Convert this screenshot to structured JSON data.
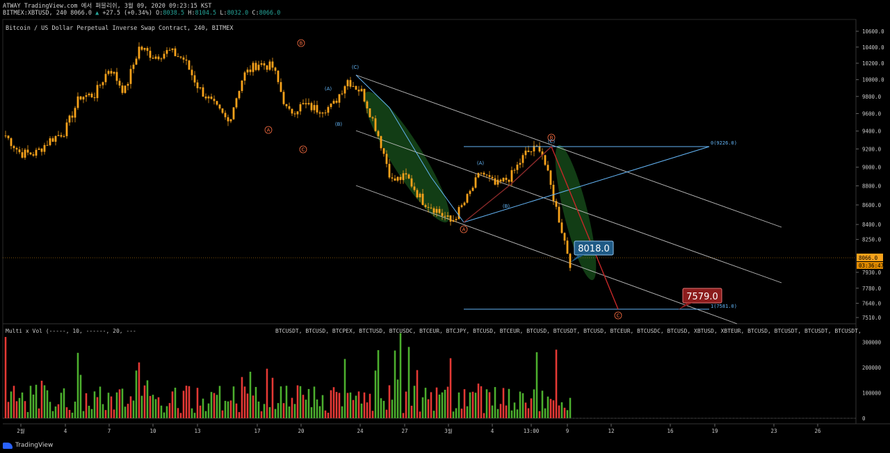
{
  "header": {
    "line1": "ATWAY TradingView.com 에서 퍼블리쉬, 3월 09, 2020 09:23:15 KST",
    "symbol": "BITMEX:XBTUSD, 240",
    "last": "8066.0",
    "change_arrow": "▲",
    "change": "+27.5 (+0.34%)",
    "o_label": "O:",
    "o": "8038.5",
    "h_label": "H:",
    "h": "8104.5",
    "l_label": "L:",
    "l": "8032.0",
    "c_label": "C:",
    "c": "8066.0"
  },
  "chart_title": "Bitcoin / US Dollar Perpetual Inverse Swap Contract, 240, BITMEX",
  "volume_legend": "Multi x Vol (-----, 10, ------, 20, ---",
  "volume_symbols": "BTCUSDT, BTCUSD, BTCPEX, BTCTUSD, BTCUSDC, BTCEUR, BTCJPY, BTCUSD, BTCEUR, BTCUSD, BTCUSDT, BTCUSD, BTCEUR, BTCUSDC, BTCUSD, XBTUSD, XBTEUR, BTCUSD, BTCUSDT, BTCUSDT, BTCUSDT,",
  "brand": "TradingView",
  "colors": {
    "background": "#000000",
    "candle": "#f7a21b",
    "vol_up": "#4caf2e",
    "vol_down": "#e53935",
    "channel": "#bdbdbd",
    "fib": "#64b5f6",
    "highlight": "#1b5e20",
    "label_blue": "#1f5a85",
    "label_red": "#8b1c1c",
    "wave_orange": "#ff7043",
    "wave_blue": "#64b5f6"
  },
  "price_labels": {
    "current": "8066.0",
    "countdown": "03:36:47",
    "callout_low": "8018.0",
    "target": "7579.0",
    "fib_0": "0(9226.0)",
    "fib_1": "1(7581.0)"
  },
  "wave_labels": {
    "A1": "A",
    "B1": "B",
    "C1": "C",
    "A2": "(A)",
    "B2": "(B)",
    "C2": "(C)",
    "A3": "A",
    "B3": "B",
    "A4": "(A)",
    "B4": "(B)",
    "C4": "(C)",
    "C5": "C"
  },
  "chart_data": {
    "type": "candlestick",
    "title": "Bitcoin / US Dollar Perpetual Inverse Swap Contract, 240, BITMEX",
    "y_axis": {
      "ticks": [
        "10600.0",
        "10400.0",
        "10200.0",
        "10000.0",
        "9800.0",
        "9600.0",
        "9400.0",
        "9200.0",
        "9000.0",
        "8800.0",
        "8600.0",
        "8400.0",
        "8250.0",
        "7930.0",
        "7780.0",
        "7640.0",
        "7510.0"
      ],
      "scale": "log"
    },
    "x_axis": {
      "ticks": [
        "2월",
        "4",
        "7",
        "10",
        "13",
        "17",
        "20",
        "24",
        "27",
        "3월",
        "4",
        "13:00",
        "9",
        "12",
        "16",
        "19",
        "23",
        "26"
      ]
    },
    "volume_axis": {
      "ticks": [
        "300000",
        "200000",
        "100000",
        "0"
      ],
      "range": [
        0,
        350000
      ]
    },
    "price_path": [
      [
        9350,
        9380
      ],
      [
        9150,
        9230
      ],
      [
        9150,
        9200
      ],
      [
        9300,
        9350
      ],
      [
        9400,
        9430
      ],
      [
        9800,
        9820
      ],
      [
        9820,
        9840
      ],
      [
        10150,
        10200
      ],
      [
        9850,
        9900
      ],
      [
        10400,
        10500
      ],
      [
        10280,
        10300
      ],
      [
        10350,
        10420
      ],
      [
        10250,
        9900
      ],
      [
        9900,
        9860
      ],
      [
        9700,
        9850
      ],
      [
        9500,
        9620
      ],
      [
        10050,
        10050
      ],
      [
        10200,
        10250
      ],
      [
        10150,
        10000
      ],
      [
        9600,
        9580
      ],
      [
        9700,
        9760
      ],
      [
        9650,
        9700
      ],
      [
        9680,
        9720
      ],
      [
        10000,
        10030
      ],
      [
        9850,
        9770
      ],
      [
        9400,
        9330
      ],
      [
        8850,
        8800
      ],
      [
        8900,
        8850
      ],
      [
        8650,
        8630
      ],
      [
        8550,
        8600
      ],
      [
        8420,
        8450
      ],
      [
        8650,
        8700
      ],
      [
        8950,
        8900
      ],
      [
        8800,
        8750
      ],
      [
        8900,
        8980
      ],
      [
        9150,
        9200
      ],
      [
        9226,
        9200
      ],
      [
        8600,
        8300
      ],
      [
        8018,
        8066
      ]
    ],
    "volume_notes": "Per-bar volume bars, green for up, red for down, ~0–330000 range"
  }
}
